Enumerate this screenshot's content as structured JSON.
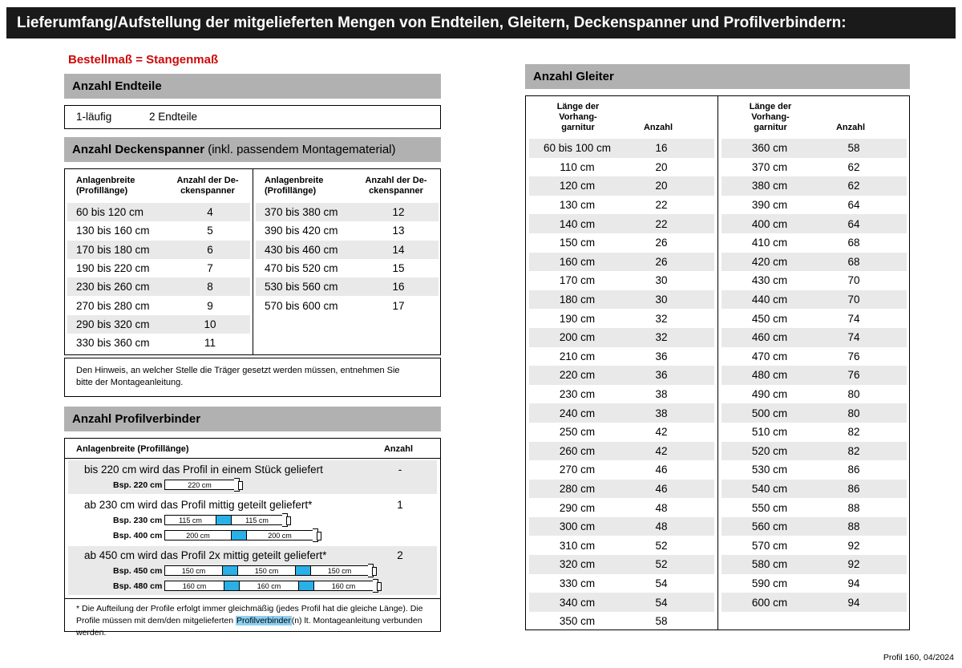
{
  "page": {
    "title": "Lieferumfang/Aufstellung der mitgelieferten Mengen von Endteilen, Gleitern, Deckenspanner und Profilverbindern:",
    "footer": "Profil 160, 04/2024"
  },
  "colors": {
    "title_bar_bg": "#1a1a1a",
    "section_header_bg": "#b1b1b1",
    "row_shade": "#e9e9e9",
    "accent_red": "#cc0a0a",
    "connector_blue": "#29b0e6",
    "highlight_blue": "#8ccff0"
  },
  "left": {
    "order_note": "Bestellmaß = Stangenmaß",
    "endteile": {
      "header": "Anzahl Endteile",
      "row": {
        "l": "1-läufig",
        "v": "2 Endteile"
      }
    },
    "deckenspanner": {
      "header_bold": "Anzahl Deckenspanner",
      "header_rest": " (inkl. passendem Montagematerial)",
      "col1_l1": "Anlagenbreite",
      "col1_l2": "(Profillänge)",
      "col2_l1": "Anzahl der De-",
      "col2_l2": "ckenspanner",
      "left_rows": [
        {
          "l": "60 bis 120 cm",
          "v": "4"
        },
        {
          "l": "130 bis 160 cm",
          "v": "5"
        },
        {
          "l": "170 bis 180 cm",
          "v": "6"
        },
        {
          "l": "190 bis 220 cm",
          "v": "7"
        },
        {
          "l": "230 bis 260 cm",
          "v": "8"
        },
        {
          "l": "270 bis 280 cm",
          "v": "9"
        },
        {
          "l": "290 bis 320 cm",
          "v": "10"
        },
        {
          "l": "330 bis 360 cm",
          "v": "11"
        }
      ],
      "right_rows": [
        {
          "l": "370 bis 380 cm",
          "v": "12"
        },
        {
          "l": "390 bis 420 cm",
          "v": "13"
        },
        {
          "l": "430 bis 460 cm",
          "v": "14"
        },
        {
          "l": "470 bis 520 cm",
          "v": "15"
        },
        {
          "l": "530 bis 560 cm",
          "v": "16"
        },
        {
          "l": "570 bis 600 cm",
          "v": "17"
        }
      ],
      "note": "Den Hinweis, an welcher Stelle die Träger gesetzt werden müssen, entnehmen Sie bitte der Montageanleitung."
    },
    "profilverbinder": {
      "header": "Anzahl Profilverbinder",
      "col1": "Anlagenbreite (Profillänge)",
      "col2": "Anzahl",
      "sections": [
        {
          "text": "bis 220 cm wird das Profil in einem Stück geliefert",
          "anzahl": "-",
          "examples": [
            {
              "label": "Bsp. 220 cm",
              "segments": [
                "220 cm"
              ]
            }
          ]
        },
        {
          "text": "ab 230 cm wird das Profil mittig geteilt geliefert*",
          "anzahl": "1",
          "examples": [
            {
              "label": "Bsp. 230 cm",
              "segments": [
                "115 cm",
                "115 cm"
              ]
            },
            {
              "label": "Bsp. 400 cm",
              "segments": [
                "200 cm",
                "200 cm"
              ]
            }
          ]
        },
        {
          "text": "ab 450 cm wird das Profil 2x mittig geteilt geliefert*",
          "anzahl": "2",
          "examples": [
            {
              "label": "Bsp. 450 cm",
              "segments": [
                "150 cm",
                "150 cm",
                "150 cm"
              ]
            },
            {
              "label": "Bsp. 480 cm",
              "segments": [
                "160 cm",
                "160 cm",
                "160 cm"
              ]
            }
          ]
        }
      ],
      "footnote_pre": "* Die Aufteilung der Profile erfolgt immer gleichmäßig (jedes Profil hat die gleiche Länge). Die Profile müssen mit dem/den mitgelieferten ",
      "footnote_highlight": "Profilverbinder",
      "footnote_post": "(n) lt. Montageanleitung verbunden werden."
    }
  },
  "gleiter": {
    "header": "Anzahl Gleiter",
    "col1_l1": "Länge der",
    "col1_l2": "Vorhang-",
    "col1_l3": "garnitur",
    "col2": "Anzahl",
    "left_rows": [
      {
        "l": "60 bis 100 cm",
        "v": "16"
      },
      {
        "l": "110 cm",
        "v": "20"
      },
      {
        "l": "120 cm",
        "v": "20"
      },
      {
        "l": "130 cm",
        "v": "22"
      },
      {
        "l": "140 cm",
        "v": "22"
      },
      {
        "l": "150 cm",
        "v": "26"
      },
      {
        "l": "160 cm",
        "v": "26"
      },
      {
        "l": "170 cm",
        "v": "30"
      },
      {
        "l": "180 cm",
        "v": "30"
      },
      {
        "l": "190 cm",
        "v": "32"
      },
      {
        "l": "200 cm",
        "v": "32"
      },
      {
        "l": "210 cm",
        "v": "36"
      },
      {
        "l": "220 cm",
        "v": "36"
      },
      {
        "l": "230 cm",
        "v": "38"
      },
      {
        "l": "240 cm",
        "v": "38"
      },
      {
        "l": "250 cm",
        "v": "42"
      },
      {
        "l": "260 cm",
        "v": "42"
      },
      {
        "l": "270 cm",
        "v": "46"
      },
      {
        "l": "280 cm",
        "v": "46"
      },
      {
        "l": "290 cm",
        "v": "48"
      },
      {
        "l": "300 cm",
        "v": "48"
      },
      {
        "l": "310 cm",
        "v": "52"
      },
      {
        "l": "320 cm",
        "v": "52"
      },
      {
        "l": "330 cm",
        "v": "54"
      },
      {
        "l": "340 cm",
        "v": "54"
      },
      {
        "l": "350 cm",
        "v": "58"
      }
    ],
    "right_rows": [
      {
        "l": "360 cm",
        "v": "58"
      },
      {
        "l": "370 cm",
        "v": "62"
      },
      {
        "l": "380 cm",
        "v": "62"
      },
      {
        "l": "390 cm",
        "v": "64"
      },
      {
        "l": "400 cm",
        "v": "64"
      },
      {
        "l": "410 cm",
        "v": "68"
      },
      {
        "l": "420 cm",
        "v": "68"
      },
      {
        "l": "430 cm",
        "v": "70"
      },
      {
        "l": "440 cm",
        "v": "70"
      },
      {
        "l": "450 cm",
        "v": "74"
      },
      {
        "l": "460 cm",
        "v": "74"
      },
      {
        "l": "470 cm",
        "v": "76"
      },
      {
        "l": "480 cm",
        "v": "76"
      },
      {
        "l": "490 cm",
        "v": "80"
      },
      {
        "l": "500 cm",
        "v": "80"
      },
      {
        "l": "510 cm",
        "v": "82"
      },
      {
        "l": "520 cm",
        "v": "82"
      },
      {
        "l": "530 cm",
        "v": "86"
      },
      {
        "l": "540 cm",
        "v": "86"
      },
      {
        "l": "550 cm",
        "v": "88"
      },
      {
        "l": "560 cm",
        "v": "88"
      },
      {
        "l": "570 cm",
        "v": "92"
      },
      {
        "l": "580 cm",
        "v": "92"
      },
      {
        "l": "590 cm",
        "v": "94"
      },
      {
        "l": "600 cm",
        "v": "94"
      }
    ]
  }
}
